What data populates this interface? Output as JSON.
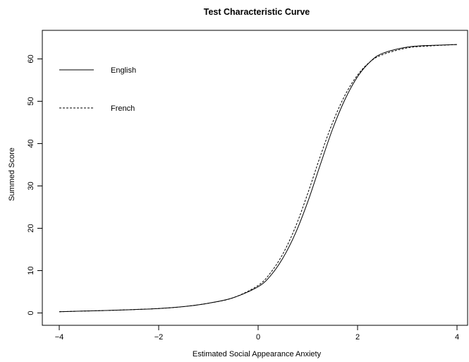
{
  "chart_data": {
    "type": "line",
    "title": "Test Characteristic Curve",
    "xlabel": "Estimated Social Appearance Anxiety",
    "ylabel": "Summed Score",
    "xlim": [
      -4,
      4
    ],
    "ylim": [
      0,
      64
    ],
    "x_ticks": [
      -4,
      -2,
      0,
      2,
      4
    ],
    "y_ticks": [
      0,
      10,
      20,
      30,
      40,
      50,
      60
    ],
    "x_tick_labels": [
      "−4",
      "−2",
      "0",
      "2",
      "4"
    ],
    "y_tick_labels": [
      "0",
      "10",
      "20",
      "30",
      "40",
      "50",
      "60"
    ],
    "grid": false,
    "legend_position": "top-left",
    "series": [
      {
        "name": "English",
        "line_style": "solid",
        "color": "#000000",
        "x": [
          -4,
          -3.5,
          -3,
          -2.5,
          -2,
          -1.5,
          -1,
          -0.5,
          0,
          0.25,
          0.5,
          0.75,
          1,
          1.25,
          1.5,
          1.75,
          2,
          2.25,
          2.5,
          3,
          3.5,
          4
        ],
        "y": [
          0.3,
          0.45,
          0.6,
          0.8,
          1.05,
          1.5,
          2.3,
          3.6,
          6.2,
          8.8,
          13.0,
          18.8,
          26.3,
          35.0,
          43.5,
          50.5,
          55.8,
          59.3,
          61.3,
          62.8,
          63.2,
          63.4
        ]
      },
      {
        "name": "French",
        "line_style": "dashed",
        "color": "#000000",
        "x": [
          -4,
          -3.5,
          -3,
          -2.5,
          -2,
          -1.5,
          -1,
          -0.5,
          0,
          0.25,
          0.5,
          0.75,
          1,
          1.25,
          1.5,
          1.75,
          2,
          2.25,
          2.5,
          3,
          3.5,
          4
        ],
        "y": [
          0.3,
          0.45,
          0.6,
          0.8,
          1.05,
          1.5,
          2.3,
          3.6,
          6.5,
          9.5,
          14.0,
          20.3,
          28.3,
          37.0,
          45.0,
          51.5,
          56.2,
          59.3,
          61.0,
          62.6,
          63.1,
          63.4
        ]
      }
    ]
  }
}
